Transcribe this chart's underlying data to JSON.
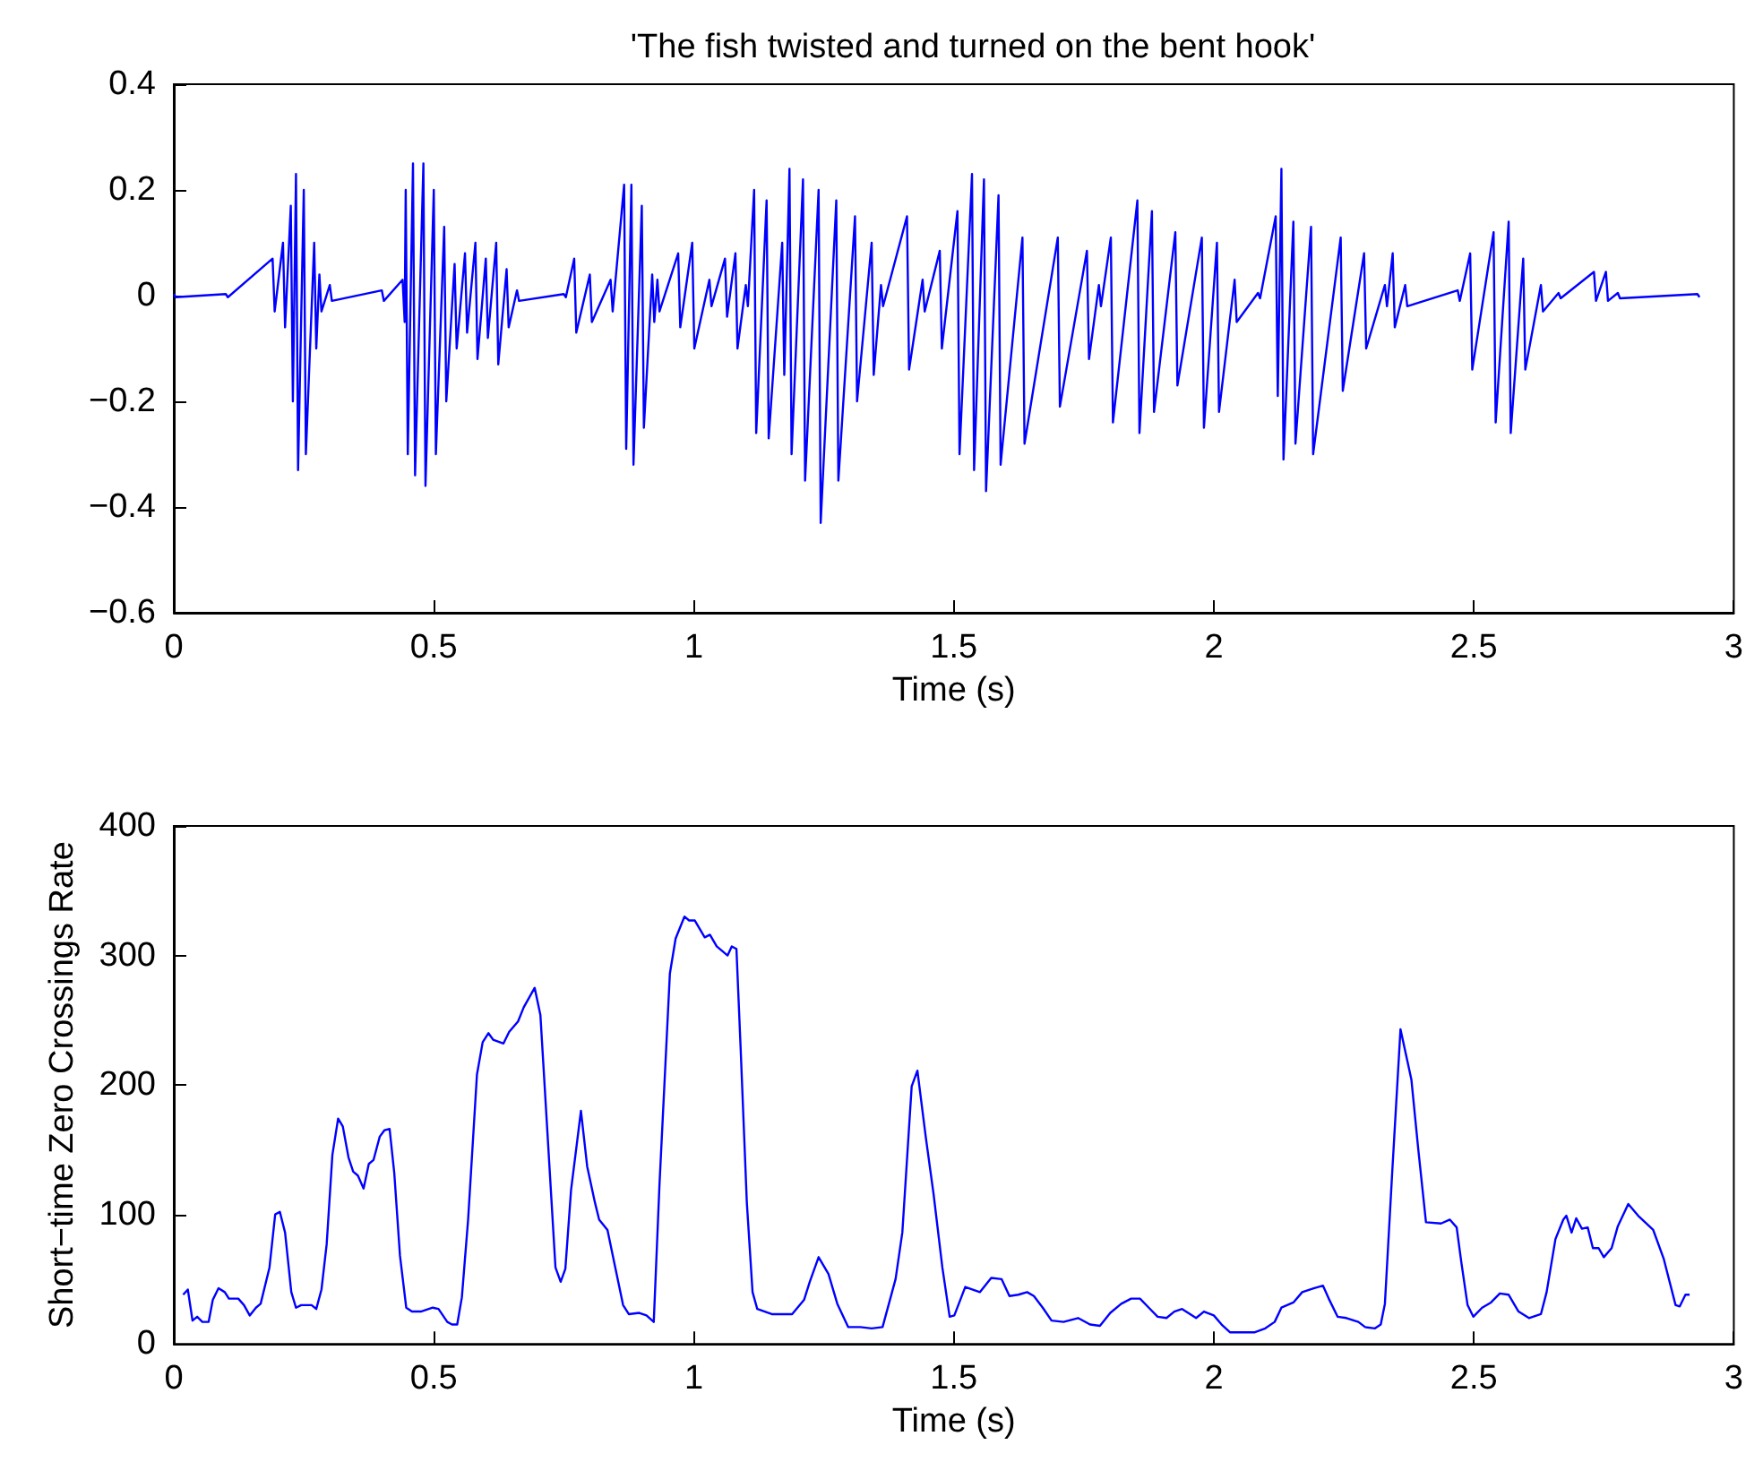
{
  "chart_data": [
    {
      "type": "line",
      "title": "'The fish twisted and turned on the bent hook'",
      "xlabel": "Time (s)",
      "xlim": [
        0,
        3
      ],
      "xticks": [
        0,
        0.5,
        1,
        1.5,
        2,
        2.5,
        3
      ],
      "ylim": [
        -0.6,
        0.4
      ],
      "yticks": [
        {
          "value": -0.6,
          "label": "−0.6"
        },
        {
          "value": -0.4,
          "label": "−0.4"
        },
        {
          "value": -0.2,
          "label": "−0.2"
        },
        0,
        0.2,
        0.4
      ],
      "grid": false,
      "series": [
        {
          "color": "#0000ff",
          "x": [
            0,
            0.004,
            0.1,
            0.104,
            0.19,
            0.194,
            0.21,
            0.214,
            0.225,
            0.229,
            0.235,
            0.239,
            0.25,
            0.254,
            0.27,
            0.274,
            0.28,
            0.284,
            0.3,
            0.304,
            0.4,
            0.404,
            0.44,
            0.444,
            0.446,
            0.45,
            0.46,
            0.464,
            0.48,
            0.484,
            0.5,
            0.504,
            0.52,
            0.524,
            0.54,
            0.544,
            0.56,
            0.564,
            0.58,
            0.584,
            0.6,
            0.604,
            0.62,
            0.624,
            0.64,
            0.644,
            0.66,
            0.664,
            0.75,
            0.754,
            0.77,
            0.774,
            0.8,
            0.804,
            0.84,
            0.844,
            0.866,
            0.87,
            0.88,
            0.884,
            0.9,
            0.904,
            0.92,
            0.924,
            0.93,
            0.934,
            0.97,
            0.974,
            0.997,
            1.001,
            1.03,
            1.034,
            1.06,
            1.064,
            1.08,
            1.084,
            1.1,
            1.104,
            1.116,
            1.12,
            1.14,
            1.144,
            1.17,
            1.174,
            1.184,
            1.188,
            1.21,
            1.214,
            1.24,
            1.244,
            1.274,
            1.278,
            1.31,
            1.314,
            1.342,
            1.346,
            1.36,
            1.364,
            1.41,
            1.414,
            1.44,
            1.444,
            1.473,
            1.477,
            1.507,
            1.511,
            1.535,
            1.539,
            1.558,
            1.562,
            1.586,
            1.59,
            1.632,
            1.636,
            1.7,
            1.704,
            1.756,
            1.76,
            1.779,
            1.783,
            1.802,
            1.806,
            1.853,
            1.857,
            1.881,
            1.885,
            1.926,
            1.93,
            1.977,
            1.981,
            2.006,
            2.01,
            2.04,
            2.044,
            2.085,
            2.089,
            2.119,
            2.123,
            2.13,
            2.134,
            2.153,
            2.157,
            2.187,
            2.191,
            2.244,
            2.248,
            2.289,
            2.293,
            2.329,
            2.333,
            2.344,
            2.348,
            2.368,
            2.372,
            2.469,
            2.473,
            2.493,
            2.497,
            2.538,
            2.542,
            2.567,
            2.571,
            2.595,
            2.599,
            2.629,
            2.633,
            2.663,
            2.667,
            2.731,
            2.735,
            2.754,
            2.758,
            2.777,
            2.781,
            2.93,
            2.934
          ],
          "values": [
            0.003,
            -0.003,
            0.003,
            -0.003,
            0.07,
            -0.03,
            0.1,
            -0.06,
            0.17,
            -0.2,
            0.23,
            -0.33,
            0.2,
            -0.3,
            0.1,
            -0.1,
            0.04,
            -0.03,
            0.02,
            -0.01,
            0.01,
            -0.01,
            0.03,
            -0.05,
            0.2,
            -0.3,
            0.25,
            -0.34,
            0.25,
            -0.36,
            0.2,
            -0.3,
            0.13,
            -0.2,
            0.06,
            -0.1,
            0.08,
            -0.07,
            0.1,
            -0.12,
            0.07,
            -0.08,
            0.1,
            -0.13,
            0.05,
            -0.06,
            0.01,
            -0.01,
            0.003,
            -0.003,
            0.07,
            -0.07,
            0.04,
            -0.05,
            0.03,
            -0.03,
            0.21,
            -0.29,
            0.21,
            -0.32,
            0.17,
            -0.25,
            0.04,
            -0.05,
            0.03,
            -0.03,
            0.08,
            -0.06,
            0.1,
            -0.1,
            0.03,
            -0.02,
            0.07,
            -0.04,
            0.08,
            -0.1,
            0.02,
            -0.02,
            0.2,
            -0.26,
            0.18,
            -0.27,
            0.1,
            -0.15,
            0.24,
            -0.3,
            0.22,
            -0.35,
            0.2,
            -0.43,
            0.18,
            -0.35,
            0.15,
            -0.2,
            0.1,
            -0.15,
            0.02,
            -0.02,
            0.15,
            -0.14,
            0.03,
            -0.03,
            0.085,
            -0.1,
            0.16,
            -0.3,
            0.23,
            -0.33,
            0.22,
            -0.37,
            0.19,
            -0.32,
            0.11,
            -0.28,
            0.11,
            -0.21,
            0.085,
            -0.12,
            0.02,
            -0.02,
            0.11,
            -0.24,
            0.18,
            -0.26,
            0.16,
            -0.22,
            0.12,
            -0.17,
            0.11,
            -0.25,
            0.1,
            -0.22,
            0.03,
            -0.05,
            0.005,
            -0.005,
            0.15,
            -0.19,
            0.24,
            -0.31,
            0.14,
            -0.28,
            0.13,
            -0.3,
            0.11,
            -0.18,
            0.08,
            -0.1,
            0.02,
            -0.02,
            0.08,
            -0.06,
            0.02,
            -0.02,
            0.01,
            -0.01,
            0.08,
            -0.14,
            0.12,
            -0.24,
            0.14,
            -0.26,
            0.07,
            -0.14,
            0.02,
            -0.03,
            0.005,
            -0.005,
            0.045,
            -0.01,
            0.045,
            -0.01,
            0.005,
            -0.005,
            0.003,
            -0.003
          ]
        }
      ]
    },
    {
      "type": "line",
      "xlabel": "Time (s)",
      "ylabel": "Short−time Zero Crossings Rate",
      "xlim": [
        0,
        3
      ],
      "xticks": [
        0,
        0.5,
        1,
        1.5,
        2,
        2.5,
        3
      ],
      "ylim": [
        0,
        400
      ],
      "yticks": [
        0,
        100,
        200,
        300,
        400
      ],
      "grid": false,
      "series": [
        {
          "color": "#0000ff",
          "x": [
            0.018,
            0.027,
            0.036,
            0.045,
            0.055,
            0.067,
            0.075,
            0.086,
            0.098,
            0.106,
            0.124,
            0.135,
            0.146,
            0.158,
            0.167,
            0.184,
            0.195,
            0.204,
            0.214,
            0.226,
            0.235,
            0.245,
            0.265,
            0.274,
            0.284,
            0.294,
            0.305,
            0.316,
            0.325,
            0.336,
            0.345,
            0.354,
            0.365,
            0.375,
            0.384,
            0.396,
            0.405,
            0.415,
            0.424,
            0.435,
            0.447,
            0.458,
            0.475,
            0.498,
            0.509,
            0.526,
            0.535,
            0.545,
            0.554,
            0.566,
            0.583,
            0.594,
            0.605,
            0.614,
            0.634,
            0.645,
            0.662,
            0.673,
            0.694,
            0.705,
            0.719,
            0.734,
            0.744,
            0.753,
            0.764,
            0.783,
            0.795,
            0.81,
            0.818,
            0.834,
            0.849,
            0.864,
            0.875,
            0.895,
            0.909,
            0.923,
            0.934,
            0.954,
            0.965,
            0.982,
            0.991,
            1.002,
            1.021,
            1.031,
            1.044,
            1.065,
            1.073,
            1.082,
            1.09,
            1.102,
            1.113,
            1.122,
            1.15,
            1.189,
            1.212,
            1.223,
            1.24,
            1.259,
            1.276,
            1.297,
            1.32,
            1.342,
            1.363,
            1.388,
            1.401,
            1.419,
            1.43,
            1.446,
            1.461,
            1.478,
            1.492,
            1.501,
            1.522,
            1.55,
            1.572,
            1.592,
            1.607,
            1.624,
            1.641,
            1.654,
            1.671,
            1.688,
            1.711,
            1.739,
            1.762,
            1.781,
            1.801,
            1.822,
            1.841,
            1.858,
            1.875,
            1.892,
            1.909,
            1.924,
            1.939,
            1.966,
            1.981,
            2.0,
            2.015,
            2.031,
            2.079,
            2.099,
            2.117,
            2.13,
            2.153,
            2.17,
            2.192,
            2.21,
            2.221,
            2.238,
            2.255,
            2.278,
            2.291,
            2.31,
            2.321,
            2.329,
            2.343,
            2.359,
            2.38,
            2.393,
            2.408,
            2.437,
            2.454,
            2.467,
            2.476,
            2.488,
            2.499,
            2.516,
            2.533,
            2.55,
            2.567,
            2.586,
            2.606,
            2.629,
            2.64,
            2.657,
            2.672,
            2.678,
            2.688,
            2.697,
            2.708,
            2.719,
            2.729,
            2.74,
            2.75,
            2.765,
            2.777,
            2.797,
            2.816,
            2.845,
            2.865,
            2.888,
            2.896,
            2.907,
            2.915
          ],
          "values": [
            38,
            42,
            18,
            21,
            17,
            17,
            34,
            43,
            40,
            35,
            35,
            30,
            22,
            28,
            31,
            59,
            100,
            102,
            86,
            40,
            28,
            30,
            30,
            27,
            42,
            77,
            146,
            174,
            168,
            144,
            133,
            130,
            120,
            139,
            142,
            160,
            165,
            166,
            132,
            68,
            28,
            25,
            25,
            28,
            27,
            17,
            15,
            15,
            36,
            96,
            208,
            233,
            240,
            235,
            232,
            241,
            249,
            260,
            275,
            254,
            160,
            59,
            48,
            58,
            119,
            180,
            137,
            109,
            96,
            88,
            59,
            30,
            23,
            24,
            22,
            17,
            123,
            286,
            313,
            330,
            327,
            327,
            314,
            316,
            307,
            300,
            307,
            305,
            229,
            109,
            40,
            27,
            23,
            23,
            34,
            48,
            67,
            54,
            31,
            13,
            13,
            12,
            13,
            50,
            86,
            199,
            211,
            160,
            116,
            59,
            21,
            22,
            44,
            40,
            51,
            50,
            37,
            38,
            40,
            37,
            28,
            18,
            17,
            20,
            15,
            14,
            24,
            31,
            35,
            35,
            28,
            21,
            20,
            25,
            27,
            20,
            25,
            22,
            15,
            9,
            9,
            12,
            17,
            28,
            32,
            40,
            43,
            45,
            35,
            21,
            20,
            17,
            13,
            12,
            15,
            31,
            132,
            243,
            204,
            151,
            94,
            93,
            96,
            90,
            63,
            30,
            21,
            28,
            32,
            39,
            38,
            25,
            20,
            23,
            40,
            81,
            96,
            99,
            86,
            97,
            89,
            90,
            74,
            74,
            67,
            74,
            91,
            108,
            99,
            88,
            66,
            30,
            29,
            38,
            38
          ]
        }
      ]
    }
  ]
}
